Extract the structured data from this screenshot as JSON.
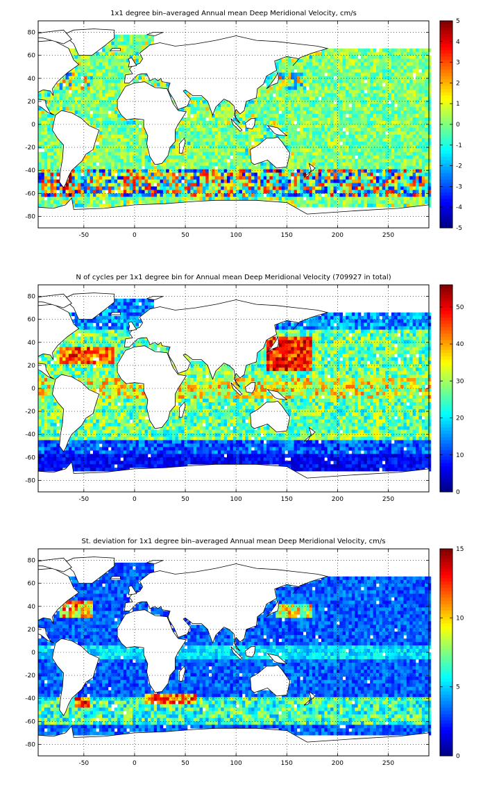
{
  "chart_data": [
    {
      "type": "heatmap",
      "title": "1x1 degree bin–averaged Annual mean Deep Meridional Velocity, cm/s",
      "xlabel": "",
      "ylabel": "",
      "xlim": [
        -95,
        290
      ],
      "ylim": [
        -90,
        90
      ],
      "x_ticks": [
        -50,
        0,
        50,
        100,
        150,
        200,
        250
      ],
      "y_ticks": [
        80,
        60,
        40,
        20,
        0,
        -20,
        -40,
        -60,
        -80
      ],
      "grid": true,
      "colormap": "jet",
      "colorbar": {
        "min": -5,
        "max": 5,
        "ticks": [
          5,
          4,
          3,
          2,
          1,
          0,
          -1,
          -2,
          -3,
          -4,
          -5
        ]
      }
    },
    {
      "type": "heatmap",
      "title": "N of cycles per 1x1 degree bin for Annual mean Deep Meridional Velocity (709927 in total)",
      "xlabel": "",
      "ylabel": "",
      "xlim": [
        -95,
        290
      ],
      "ylim": [
        -90,
        90
      ],
      "x_ticks": [
        -50,
        0,
        50,
        100,
        150,
        200,
        250
      ],
      "y_ticks": [
        80,
        60,
        40,
        20,
        0,
        -20,
        -40,
        -60,
        -80
      ],
      "grid": true,
      "colormap": "jet",
      "colorbar": {
        "min": 0,
        "max": 56,
        "ticks": [
          50,
          40,
          30,
          20,
          10,
          0
        ]
      }
    },
    {
      "type": "heatmap",
      "title": "St. deviation for 1x1 degree bin–averaged Annual mean Deep Meridional Velocity, cm/s",
      "xlabel": "",
      "ylabel": "",
      "xlim": [
        -95,
        290
      ],
      "ylim": [
        -90,
        90
      ],
      "x_ticks": [
        -50,
        0,
        50,
        100,
        150,
        200,
        250
      ],
      "y_ticks": [
        80,
        60,
        40,
        20,
        0,
        -20,
        -40,
        -60,
        -80
      ],
      "grid": true,
      "colormap": "jet",
      "colorbar": {
        "min": 0,
        "max": 15,
        "ticks": [
          15,
          10,
          5,
          0
        ]
      }
    }
  ]
}
